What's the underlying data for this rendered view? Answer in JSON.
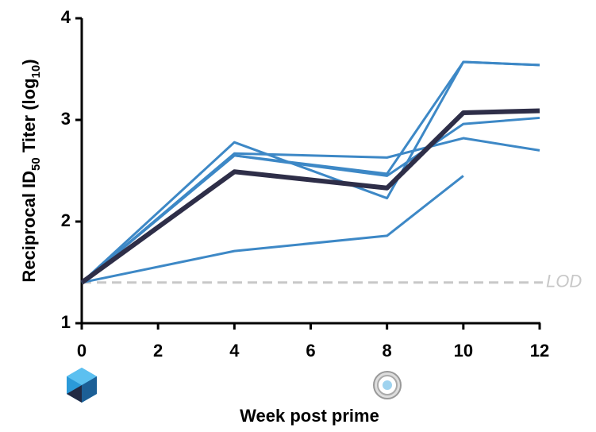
{
  "chart_data": {
    "type": "line",
    "ylabel": [
      "Reciprocal ID",
      "50",
      " Titer (log",
      "10",
      ")"
    ],
    "xlabel": "Week post prime",
    "x": [
      0,
      4,
      8,
      10,
      12
    ],
    "series": [
      {
        "color": "#3d88c6",
        "values": [
          1.4,
          2.78,
          2.23,
          3.57,
          3.54
        ]
      },
      {
        "color": "#3d88c6",
        "values": [
          1.4,
          2.67,
          2.63,
          2.82,
          2.7
        ]
      },
      {
        "color": "#3d88c6",
        "values": [
          1.4,
          2.65,
          2.47,
          3.57,
          3.54
        ]
      },
      {
        "color": "#3d88c6",
        "values": [
          1.4,
          2.65,
          2.45,
          2.96,
          3.02
        ]
      },
      {
        "color": "#3d88c6",
        "values": [
          1.4,
          1.71,
          1.86,
          2.45,
          null
        ]
      },
      {
        "color": "#2e2e48",
        "values": [
          1.4,
          2.49,
          2.33,
          3.07,
          3.09
        ]
      }
    ],
    "lod": {
      "value": 1.4,
      "label": "LOD"
    },
    "xlim": [
      0,
      12
    ],
    "xticks": [
      0,
      2,
      4,
      6,
      8,
      10,
      12
    ],
    "ylim": [
      1,
      4
    ],
    "yticks": [
      1,
      2,
      3,
      4
    ]
  }
}
